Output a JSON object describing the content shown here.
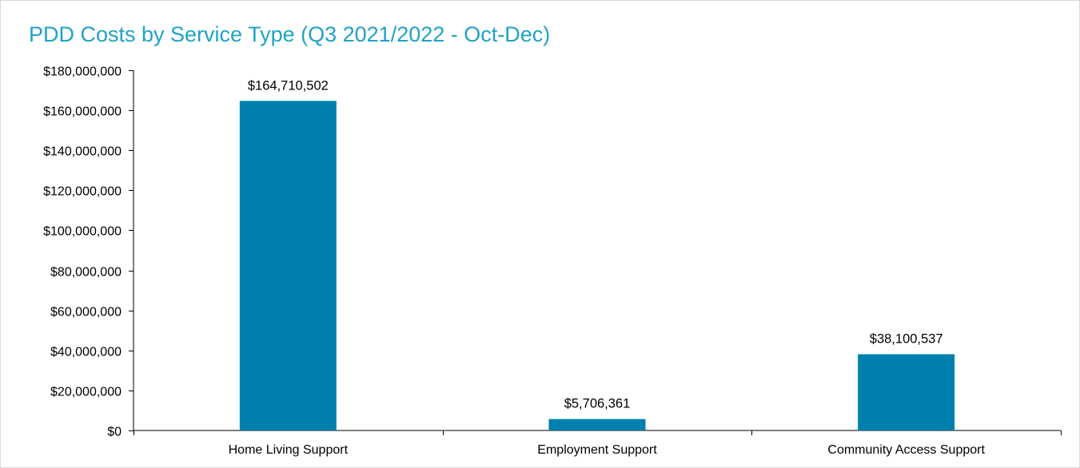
{
  "chart_data": {
    "type": "bar",
    "title": "PDD Costs by Service Type (Q3 2021/2022 - Oct-Dec)",
    "xlabel": "",
    "ylabel": "",
    "categories": [
      "Home Living Support",
      "Employment Support",
      "Community Access Support"
    ],
    "values": [
      164710502,
      5706361,
      38100537
    ],
    "data_labels": [
      "$164,710,502",
      "$5,706,361",
      "$38,100,537"
    ],
    "ylim": [
      0,
      180000000
    ],
    "yticks": [
      0,
      20000000,
      40000000,
      60000000,
      80000000,
      100000000,
      120000000,
      140000000,
      160000000,
      180000000
    ],
    "ytick_labels": [
      "$0",
      "$20,000,000",
      "$40,000,000",
      "$60,000,000",
      "$80,000,000",
      "$100,000,000",
      "$120,000,000",
      "$140,000,000",
      "$160,000,000",
      "$180,000,000"
    ],
    "grid": false,
    "legend": "none",
    "colors": {
      "bar": "#0080ac",
      "title": "#1fa3c7",
      "axis": "#000000"
    }
  }
}
